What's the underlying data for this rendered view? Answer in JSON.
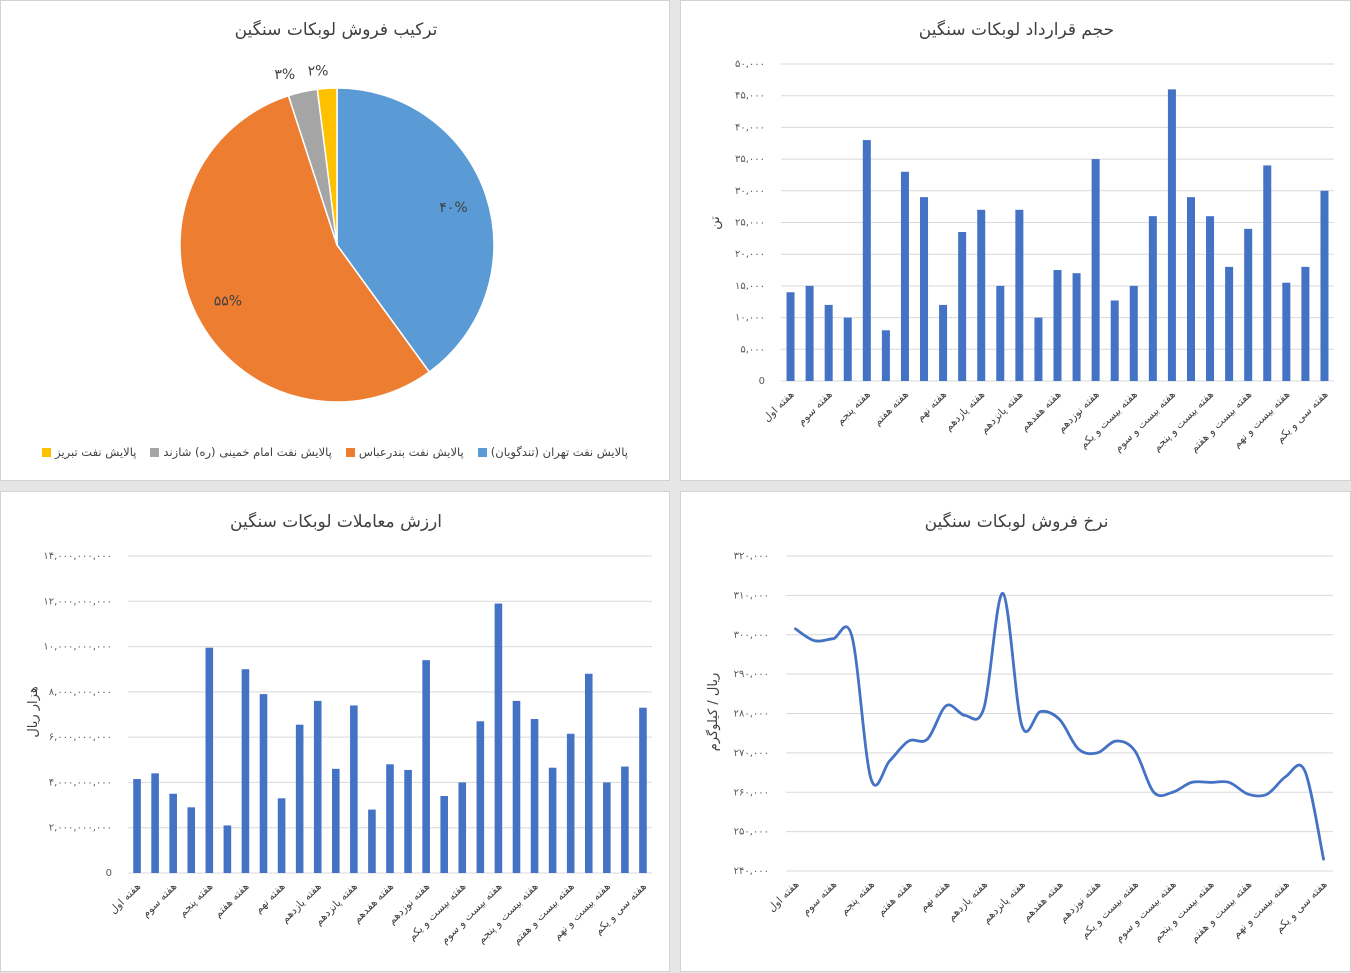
{
  "chart_data": [
    {
      "type": "pie",
      "title": "ترکیب فروش لوبکات سنگین",
      "series": [
        {
          "name": "پالایش نفت تهران (تندگویان)",
          "value": 40,
          "label": "۴۰%",
          "color": "#5b9bd5"
        },
        {
          "name": "پالایش نفت بندرعباس",
          "value": 55,
          "label": "۵۵%",
          "color": "#ed7d31"
        },
        {
          "name": "پالایش نفت امام خمینی (ره) شازند",
          "value": 3,
          "label": "۳%",
          "color": "#a5a5a5"
        },
        {
          "name": "پالایش نفت تبریز",
          "value": 2,
          "label": "۲%",
          "color": "#ffc000"
        }
      ],
      "legend": "bottom"
    },
    {
      "type": "bar",
      "title": "حجم قرارداد لوبکات سنگین",
      "ylabel": "تن",
      "xlabel": "",
      "ylim": [
        0,
        50000
      ],
      "yticks": [
        "0",
        "۵,۰۰۰",
        "۱۰,۰۰۰",
        "۱۵,۰۰۰",
        "۲۰,۰۰۰",
        "۲۵,۰۰۰",
        "۳۰,۰۰۰",
        "۳۵,۰۰۰",
        "۴۰,۰۰۰",
        "۴۵,۰۰۰",
        "۵۰,۰۰۰"
      ],
      "categories": [
        "هفته اول",
        "",
        "هفته سوم",
        "",
        "هفته پنجم",
        "",
        "هفته هفتم",
        "",
        "هفته نهم",
        "",
        "هفته یازدهم",
        "",
        "هفته پانزدهم",
        "",
        "هفته هفدهم",
        "",
        "هفته نوزدهم",
        "",
        "هفته بیست و یکم",
        "",
        "هفته بیست و سوم",
        "",
        "هفته بیست و پنجم",
        "",
        "هفته بیست و هفتم",
        "",
        "هفته بیست و نهم",
        "",
        "هفته سی و یکم"
      ],
      "values": [
        14000,
        15000,
        12000,
        10000,
        38000,
        8000,
        33000,
        29000,
        12000,
        23500,
        27000,
        15000,
        27000,
        10000,
        17500,
        17000,
        35000,
        12700,
        15000,
        26000,
        46000,
        29000,
        26000,
        18000,
        24000,
        34000,
        15500,
        18000,
        30000
      ],
      "color": "#4472c4",
      "grid": true
    },
    {
      "type": "bar",
      "title": "ارزش معاملات لوبکات سنگین",
      "ylabel": "هزار ریال",
      "xlabel": "",
      "ylim": [
        0,
        14000000000
      ],
      "yticks": [
        "0",
        "۲,۰۰۰,۰۰۰,۰۰۰",
        "۴,۰۰۰,۰۰۰,۰۰۰",
        "۶,۰۰۰,۰۰۰,۰۰۰",
        "۸,۰۰۰,۰۰۰,۰۰۰",
        "۱۰,۰۰۰,۰۰۰,۰۰۰",
        "۱۲,۰۰۰,۰۰۰,۰۰۰",
        "۱۴,۰۰۰,۰۰۰,۰۰۰"
      ],
      "categories": [
        "هفته اول",
        "",
        "هفته سوم",
        "",
        "هفته پنجم",
        "",
        "هفته هفتم",
        "",
        "هفته نهم",
        "",
        "هفته یازدهم",
        "",
        "هفته پانزدهم",
        "",
        "هفته هفدهم",
        "",
        "هفته نوزدهم",
        "",
        "هفته بیست و یکم",
        "",
        "هفته بیست و سوم",
        "",
        "هفته بیست و پنجم",
        "",
        "هفته بیست و هفتم",
        "",
        "هفته بیست و نهم",
        "",
        "هفته سی و یکم"
      ],
      "values": [
        4150000000,
        4400000000,
        3500000000,
        2900000000,
        9950000000,
        2100000000,
        9000000000,
        7900000000,
        3300000000,
        6550000000,
        7600000000,
        4600000000,
        7400000000,
        2800000000,
        4800000000,
        4550000000,
        9400000000,
        3400000000,
        4000000000,
        6700000000,
        11900000000,
        7600000000,
        6800000000,
        4650000000,
        6150000000,
        8800000000,
        4000000000,
        4700000000,
        7300000000
      ],
      "color": "#4472c4",
      "grid": true
    },
    {
      "type": "line",
      "title": "نرخ فروش لوبکات سنگین",
      "ylabel": "ریال / کیلوگرم",
      "xlabel": "",
      "ylim": [
        240000,
        320000
      ],
      "yticks": [
        "۲۴۰,۰۰۰",
        "۲۵۰,۰۰۰",
        "۲۶۰,۰۰۰",
        "۲۷۰,۰۰۰",
        "۲۸۰,۰۰۰",
        "۲۹۰,۰۰۰",
        "۳۰۰,۰۰۰",
        "۳۱۰,۰۰۰",
        "۳۲۰,۰۰۰"
      ],
      "categories": [
        "هفته اول",
        "",
        "هفته سوم",
        "",
        "هفته پنجم",
        "",
        "هفته هفتم",
        "",
        "هفته نهم",
        "",
        "هفته یازدهم",
        "",
        "هفته پانزدهم",
        "",
        "هفته هفدهم",
        "",
        "هفته نوزدهم",
        "",
        "هفته بیست و یکم",
        "",
        "هفته بیست و سوم",
        "",
        "هفته بیست و پنجم",
        "",
        "هفته بیست و هفتم",
        "",
        "هفته بیست و نهم",
        "",
        "هفته سی و یکم"
      ],
      "values": [
        301500,
        298500,
        299000,
        299500,
        263500,
        268000,
        273000,
        273500,
        282000,
        279500,
        281500,
        310500,
        277000,
        280500,
        278500,
        271000,
        270000,
        273000,
        270500,
        260000,
        260000,
        262500,
        262500,
        262500,
        259500,
        259500,
        264000,
        265500,
        243000
      ],
      "color": "#4472c4",
      "grid": true
    }
  ]
}
